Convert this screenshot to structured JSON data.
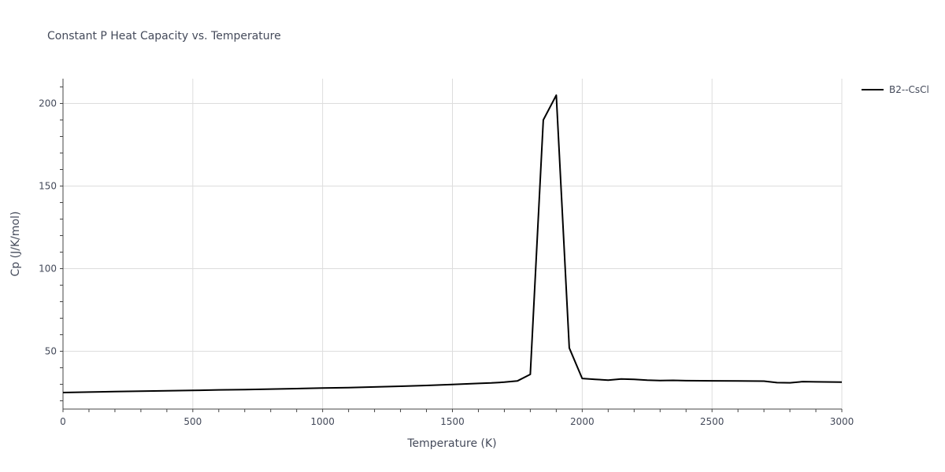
{
  "chart_data": {
    "type": "line",
    "title": "Constant P Heat Capacity vs. Temperature",
    "xlabel": "Temperature (K)",
    "ylabel": "Cp (J/K/mol)",
    "xlim": [
      0,
      3000
    ],
    "ylim": [
      15,
      215
    ],
    "x_ticks": [
      0,
      500,
      1000,
      1500,
      2000,
      2500,
      3000
    ],
    "y_ticks": [
      50,
      100,
      150,
      200
    ],
    "grid": true,
    "legend_position": "top-right",
    "series": [
      {
        "name": "B2--CsCl",
        "color": "#000000",
        "x": [
          0,
          100,
          200,
          300,
          400,
          500,
          600,
          700,
          800,
          900,
          1000,
          1100,
          1200,
          1300,
          1400,
          1500,
          1600,
          1650,
          1700,
          1750,
          1800,
          1850,
          1900,
          1950,
          2000,
          2050,
          2100,
          2150,
          2200,
          2250,
          2300,
          2350,
          2400,
          2500,
          2600,
          2700,
          2750,
          2800,
          2850,
          2900,
          3000
        ],
        "y": [
          25.0,
          25.3,
          25.6,
          25.8,
          26.1,
          26.3,
          26.6,
          26.8,
          27.1,
          27.4,
          27.7,
          28.0,
          28.4,
          28.8,
          29.3,
          29.9,
          30.5,
          30.8,
          31.3,
          32.0,
          36.0,
          190.0,
          205.0,
          52.0,
          33.5,
          33.0,
          32.5,
          33.2,
          33.0,
          32.5,
          32.3,
          32.4,
          32.2,
          32.1,
          32.0,
          31.9,
          31.0,
          30.9,
          31.6,
          31.5,
          31.3
        ]
      }
    ]
  }
}
